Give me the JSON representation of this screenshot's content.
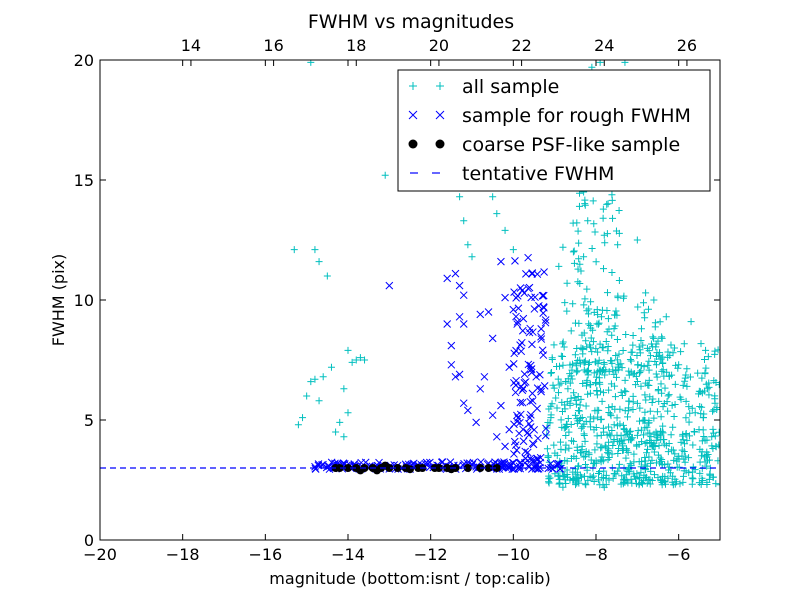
{
  "chart_data": {
    "type": "scatter",
    "title": "FWHM vs magnitudes",
    "xlabel": "magnitude (bottom:isnt / top:calib)",
    "ylabel": "FWHM (pix)",
    "xlim": [
      -20,
      -5
    ],
    "ylim": [
      0,
      20
    ],
    "x_ticks": [
      -20,
      -18,
      -16,
      -14,
      -12,
      -10,
      -8,
      -6
    ],
    "x_tick_labels": [
      "−20",
      "−18",
      "−16",
      "−14",
      "−12",
      "−10",
      "−8",
      "−6"
    ],
    "y_ticks": [
      0,
      5,
      10,
      15,
      20
    ],
    "y_tick_labels": [
      "0",
      "5",
      "10",
      "15",
      "20"
    ],
    "top_ticks": [
      14,
      16,
      18,
      20,
      22,
      24,
      26
    ],
    "top_tick_labels": [
      "14",
      "16",
      "18",
      "20",
      "22",
      "24",
      "26"
    ],
    "top_offset": 31.8,
    "legend_position": "upper-right",
    "grid": false,
    "series": [
      {
        "name": "all sample",
        "marker": "plus",
        "color": "#00bfbf",
        "points": [
          [
            -15.3,
            12.1
          ],
          [
            -14.8,
            12.1
          ],
          [
            -14.7,
            11.6
          ],
          [
            -14.5,
            11.0
          ],
          [
            -15.2,
            4.8
          ],
          [
            -15.1,
            5.1
          ],
          [
            -15.0,
            6.0
          ],
          [
            -14.9,
            6.6
          ],
          [
            -14.8,
            6.7
          ],
          [
            -14.7,
            5.8
          ],
          [
            -14.6,
            6.8
          ],
          [
            -14.4,
            7.2
          ],
          [
            -14.3,
            4.5
          ],
          [
            -14.2,
            4.9
          ],
          [
            -14.1,
            4.3
          ],
          [
            -14.1,
            6.3
          ],
          [
            -14.0,
            7.9
          ],
          [
            -13.9,
            7.4
          ],
          [
            -13.8,
            7.5
          ],
          [
            -13.7,
            7.6
          ],
          [
            -13.6,
            7.5
          ],
          [
            -14.0,
            5.3
          ],
          [
            -14.9,
            19.9
          ],
          [
            -13.1,
            15.2
          ],
          [
            -11.3,
            14.3
          ],
          [
            -11.2,
            13.3
          ],
          [
            -11.1,
            12.3
          ],
          [
            -11.0,
            11.8
          ],
          [
            -10.5,
            14.3
          ],
          [
            -10.4,
            13.6
          ],
          [
            -10.2,
            12.9
          ],
          [
            -10.0,
            12.1
          ],
          [
            -9.7,
            15.4
          ],
          [
            -9.5,
            14.7
          ],
          [
            -8.1,
            19.7
          ],
          [
            -7.9,
            19.9
          ],
          [
            -7.3,
            19.9
          ],
          [
            -8.7,
            17.8
          ],
          [
            -8.5,
            16.3
          ],
          [
            -8.6,
            15.3
          ],
          [
            -8.3,
            14.5
          ],
          [
            -8.4,
            13.9
          ],
          [
            -8.2,
            13.3
          ],
          [
            -8.0,
            14.9
          ],
          [
            -7.6,
            13.4
          ],
          [
            -7.8,
            12.7
          ],
          [
            -8.8,
            12.2
          ],
          [
            -7.0,
            12.5
          ],
          [
            -8.3,
            11.8
          ],
          [
            -8.9,
            11.4
          ],
          [
            -8.7,
            10.7
          ],
          [
            -6.6,
            10.0
          ],
          [
            -6.3,
            9.3
          ],
          [
            -5.7,
            9.1
          ],
          [
            -6.9,
            8.8
          ],
          [
            -6.4,
            8.4
          ],
          [
            -6.1,
            8.0
          ],
          [
            -6.0,
            7.3
          ],
          [
            -5.8,
            6.4
          ],
          [
            -5.5,
            6.2
          ],
          [
            -5.3,
            6.3
          ],
          [
            -5.6,
            5.3
          ],
          [
            -5.4,
            5.1
          ],
          [
            -5.9,
            4.4
          ],
          [
            -5.2,
            4.3
          ],
          [
            -5.1,
            3.9
          ],
          [
            -5.05,
            3.3
          ],
          [
            -5.0,
            2.3
          ],
          [
            -8.8,
            2.2
          ],
          [
            -7.8,
            2.2
          ],
          [
            -7.3,
            2.4
          ],
          [
            -6.9,
            2.4
          ],
          [
            -6.5,
            2.6
          ],
          [
            -6.2,
            2.8
          ]
        ],
        "clusters": [
          {
            "xrange": [
              -9.2,
              -5.0
            ],
            "yrange": [
              2.3,
              8.2
            ],
            "count": 550
          },
          {
            "xrange": [
              -8.9,
              -6.4
            ],
            "yrange": [
              2.5,
              10.5
            ],
            "count": 220
          },
          {
            "xrange": [
              -8.6,
              -7.4
            ],
            "yrange": [
              7.0,
              14.5
            ],
            "count": 90
          }
        ]
      },
      {
        "name": "sample for rough FWHM",
        "marker": "x",
        "color": "#0000ff",
        "points": [
          [
            -13.0,
            10.6
          ],
          [
            -11.6,
            10.9
          ],
          [
            -11.4,
            11.1
          ],
          [
            -11.3,
            10.6
          ],
          [
            -11.2,
            10.2
          ],
          [
            -11.6,
            9.0
          ],
          [
            -11.5,
            8.1
          ],
          [
            -11.3,
            9.3
          ],
          [
            -11.2,
            9.0
          ],
          [
            -11.5,
            7.3
          ],
          [
            -11.4,
            6.8
          ],
          [
            -11.3,
            6.9
          ],
          [
            -11.2,
            5.7
          ],
          [
            -11.1,
            5.4
          ],
          [
            -10.9,
            4.9
          ],
          [
            -10.8,
            6.3
          ],
          [
            -10.7,
            6.8
          ],
          [
            -10.8,
            9.4
          ],
          [
            -10.6,
            9.5
          ],
          [
            -10.5,
            8.4
          ],
          [
            -10.3,
            11.6
          ],
          [
            -10.2,
            10.1
          ],
          [
            -10.5,
            5.2
          ],
          [
            -10.4,
            4.3
          ],
          [
            -10.3,
            5.6
          ],
          [
            -10.2,
            3.9
          ],
          [
            -10.1,
            4.6
          ],
          [
            -10.1,
            7.2
          ],
          [
            -10.0,
            9.6
          ],
          [
            -10.6,
            3.2
          ],
          [
            -10.0,
            3.2
          ]
        ],
        "clusters": [
          {
            "xrange": [
              -10.0,
              -9.2
            ],
            "yrange": [
              3.3,
              11.8
            ],
            "count": 110
          },
          {
            "xrange": [
              -14.8,
              -8.8
            ],
            "yrange": [
              2.95,
              3.25
            ],
            "count": 160
          }
        ]
      },
      {
        "name": "coarse PSF-like sample",
        "marker": "dot",
        "color": "#000000",
        "points": [
          [
            -14.3,
            3.0
          ],
          [
            -14.2,
            3.0
          ],
          [
            -14.0,
            3.0
          ],
          [
            -13.8,
            3.0
          ],
          [
            -13.7,
            2.9
          ],
          [
            -13.6,
            3.0
          ],
          [
            -13.4,
            3.0
          ],
          [
            -13.3,
            2.9
          ],
          [
            -13.2,
            3.0
          ],
          [
            -13.1,
            3.1
          ],
          [
            -13.0,
            3.0
          ],
          [
            -12.8,
            3.0
          ],
          [
            -12.6,
            3.0
          ],
          [
            -12.5,
            2.95
          ],
          [
            -12.3,
            3.0
          ],
          [
            -12.2,
            3.0
          ],
          [
            -11.9,
            3.0
          ],
          [
            -11.8,
            3.0
          ],
          [
            -11.6,
            3.0
          ],
          [
            -11.5,
            2.95
          ],
          [
            -11.4,
            3.0
          ],
          [
            -11.1,
            3.0
          ],
          [
            -10.8,
            3.0
          ],
          [
            -10.6,
            3.0
          ],
          [
            -10.4,
            3.0
          ]
        ]
      },
      {
        "name": "tentative FWHM",
        "type": "hline",
        "style": "dashed",
        "color": "#0000ff",
        "value": 3.0
      }
    ]
  }
}
